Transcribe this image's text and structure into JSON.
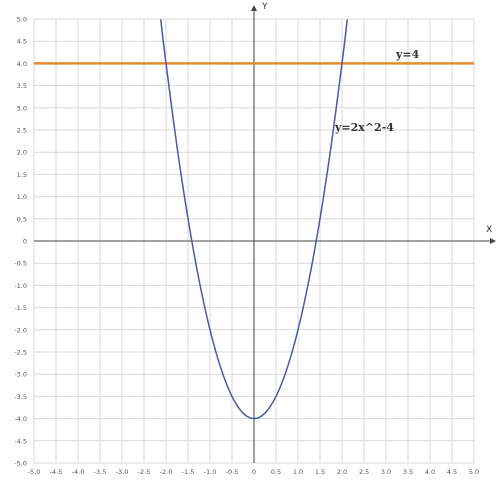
{
  "chart_data": {
    "type": "line",
    "xlabel": "X",
    "ylabel": "Y",
    "xlim": [
      -5.0,
      5.0
    ],
    "ylim": [
      -5.0,
      5.0
    ],
    "x_step": 0.5,
    "y_step": 0.5,
    "grid": true,
    "x_ticks": [
      "-5.0",
      "-4.5",
      "-4.0",
      "-3.5",
      "-3.0",
      "-2.5",
      "-2.0",
      "-1.5",
      "-1.0",
      "-0.5",
      "0",
      "0.5",
      "1.0",
      "1.5",
      "2.0",
      "2.5",
      "3.0",
      "3.5",
      "4.0",
      "4.5",
      "5.0"
    ],
    "y_ticks": [
      "5.0",
      "4.5",
      "4.0",
      "3.5",
      "3.0",
      "2.5",
      "2.0",
      "1.5",
      "1.0",
      "0.5",
      "0",
      "-0.5",
      "-1.0",
      "-1.5",
      "-2.0",
      "-2.5",
      "-3.0",
      "-3.5",
      "-4.0",
      "-4.5",
      "-5.0"
    ],
    "series": [
      {
        "name": "y=4",
        "color": "#e8892e",
        "x": [
          -5.0,
          5.0
        ],
        "y": [
          4.0,
          4.0
        ]
      },
      {
        "name": "y=2x^2-4",
        "color": "#4a5aa8",
        "x": [
          -2.12,
          -2.0,
          -1.75,
          -1.5,
          -1.25,
          -1.0,
          -0.75,
          -0.5,
          -0.25,
          0.0,
          0.25,
          0.5,
          0.75,
          1.0,
          1.25,
          1.5,
          1.75,
          2.0,
          2.12
        ],
        "y": [
          4.99,
          4.0,
          2.125,
          0.5,
          -0.875,
          -2.0,
          -2.875,
          -3.5,
          -3.875,
          -4.0,
          -3.875,
          -3.5,
          -2.875,
          -2.0,
          -0.875,
          0.5,
          2.125,
          4.0,
          4.99
        ]
      }
    ]
  }
}
